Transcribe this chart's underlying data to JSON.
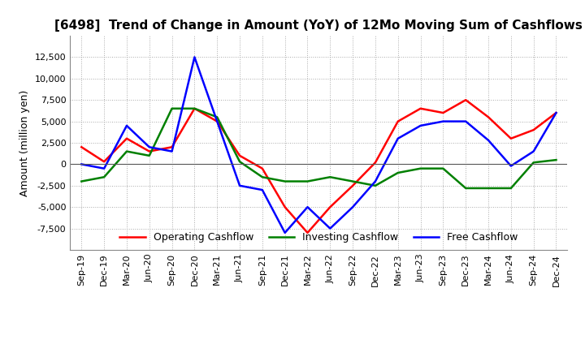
{
  "title": "[6498]  Trend of Change in Amount (YoY) of 12Mo Moving Sum of Cashflows",
  "ylabel": "Amount (million yen)",
  "x_labels": [
    "Sep-19",
    "Dec-19",
    "Mar-20",
    "Jun-20",
    "Sep-20",
    "Dec-20",
    "Mar-21",
    "Jun-21",
    "Sep-21",
    "Dec-21",
    "Mar-22",
    "Jun-22",
    "Sep-22",
    "Dec-22",
    "Mar-23",
    "Jun-23",
    "Sep-23",
    "Dec-23",
    "Mar-24",
    "Jun-24",
    "Sep-24",
    "Dec-24"
  ],
  "operating": [
    2000,
    300,
    3000,
    1500,
    2000,
    6500,
    5000,
    1000,
    -500,
    -5000,
    -8000,
    -5000,
    -2500,
    200,
    5000,
    6500,
    6000,
    7500,
    5500,
    3000,
    4000,
    6000
  ],
  "investing": [
    -2000,
    -1500,
    1500,
    1000,
    6500,
    6500,
    5500,
    300,
    -1500,
    -2000,
    -2000,
    -1500,
    -2000,
    -2500,
    -1000,
    -500,
    -500,
    -2800,
    -2800,
    -2800,
    200,
    500
  ],
  "free": [
    0,
    -500,
    4500,
    2000,
    1500,
    12500,
    5000,
    -2500,
    -3000,
    -8000,
    -5000,
    -7500,
    -5000,
    -2000,
    3000,
    4500,
    5000,
    5000,
    2800,
    -200,
    1500,
    6000
  ],
  "ylim": [
    -10000,
    15000
  ],
  "yticks": [
    -7500,
    -5000,
    -2500,
    0,
    2500,
    5000,
    7500,
    10000,
    12500
  ],
  "legend_labels": [
    "Operating Cashflow",
    "Investing Cashflow",
    "Free Cashflow"
  ],
  "line_colors": [
    "#ff0000",
    "#008000",
    "#0000ff"
  ],
  "title_fontsize": 11,
  "label_fontsize": 9,
  "tick_fontsize": 8,
  "grid_color": "#aaaaaa",
  "grid_style": "dotted"
}
